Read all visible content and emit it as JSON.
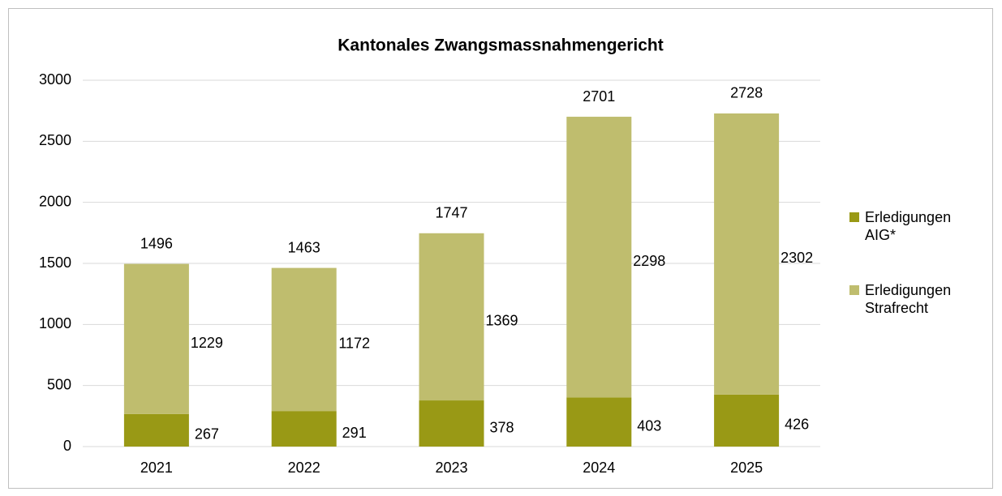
{
  "chart_data": {
    "type": "stacked_bar",
    "title": "Kantonales Zwangsmassnahmengericht",
    "categories": [
      "2021",
      "2022",
      "2023",
      "2024",
      "2025"
    ],
    "series": [
      {
        "name": "Erledigungen AIG*",
        "color": "#999915",
        "values": [
          267,
          291,
          378,
          403,
          426
        ]
      },
      {
        "name": "Erledigungen Strafrecht",
        "color": "#bfbd6e",
        "values": [
          1229,
          1172,
          1369,
          2298,
          2302
        ]
      }
    ],
    "totals": [
      1496,
      1463,
      1747,
      2701,
      2728
    ],
    "ylim": [
      0,
      3000
    ],
    "yticks": [
      0,
      500,
      1000,
      1500,
      2000,
      2500,
      3000
    ],
    "grid": true,
    "legend": "right"
  }
}
